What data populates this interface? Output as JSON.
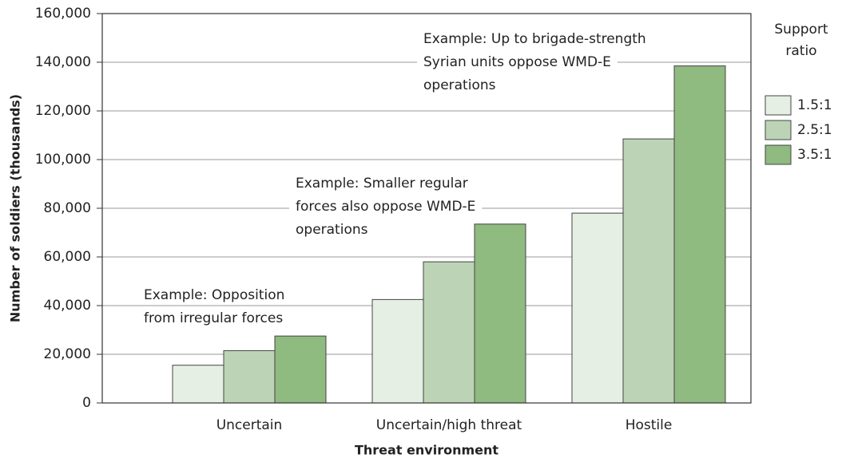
{
  "chart_data": {
    "type": "bar",
    "x_label": "Threat environment",
    "y_label": "Number of soldiers (thousands)",
    "categories": [
      "Uncertain",
      "Uncertain/high threat",
      "Hostile"
    ],
    "series": [
      {
        "name": "1.5:1",
        "color": "#e6efe3",
        "values": [
          15500,
          42500,
          78000
        ]
      },
      {
        "name": "2.5:1",
        "color": "#bcd4b5",
        "values": [
          21500,
          58000,
          108500
        ]
      },
      {
        "name": "3.5:1",
        "color": "#8fba80",
        "values": [
          27500,
          73500,
          138500
        ]
      }
    ],
    "legend_title": [
      "Support",
      "ratio"
    ],
    "legend": "right",
    "ylim": [
      0,
      160000
    ],
    "yticks": [
      0,
      {
        "value": 20000,
        "label": "20,000"
      },
      {
        "value": 40000,
        "label": "40,000"
      },
      {
        "value": 60000,
        "label": "60,000"
      },
      {
        "value": 80000,
        "label": "80,000"
      },
      {
        "value": 100000,
        "label": "100,000"
      },
      {
        "value": 120000,
        "label": "120,000"
      },
      {
        "value": 140000,
        "label": "140,000"
      },
      {
        "value": 160000,
        "label": "160,000"
      }
    ],
    "grid": true,
    "annotations": [
      [
        "Example: Opposition",
        "from irregular forces"
      ],
      [
        "Example: Smaller regular",
        "forces also oppose WMD-E",
        "operations"
      ],
      [
        "Example: Up to brigade-strength",
        "Syrian units oppose WMD-E",
        "operations"
      ]
    ]
  }
}
